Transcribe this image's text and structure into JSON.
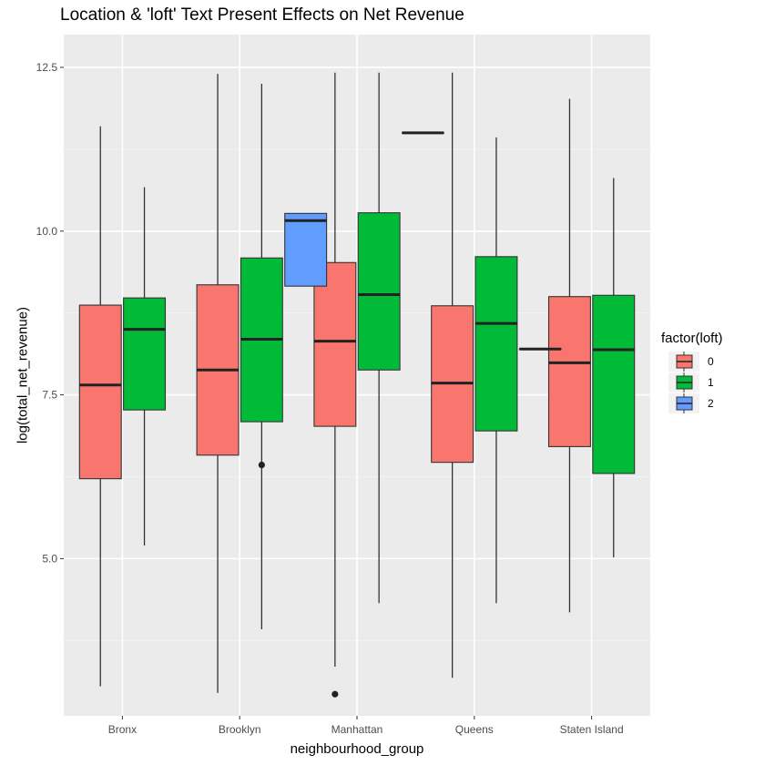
{
  "chart_data": {
    "type": "boxplot",
    "title": "Location & 'loft' Text Present Effects on Net Revenue",
    "xlabel": "neighbourhood_group",
    "ylabel": "log(total_net_revenue)",
    "categories": [
      "Bronx",
      "Brooklyn",
      "Manhattan",
      "Queens",
      "Staten Island"
    ],
    "ylim": [
      2.6,
      13.0
    ],
    "yticks": [
      5.0,
      7.5,
      10.0,
      12.5
    ],
    "ytick_labels": [
      "5.0",
      "7.5",
      "10.0",
      "12.5"
    ],
    "grid": true,
    "legend": {
      "title": "factor(loft)",
      "position": "right",
      "entries": [
        {
          "label": "0",
          "color": "#F8766D"
        },
        {
          "label": "1",
          "color": "#00BA38"
        },
        {
          "label": "2",
          "color": "#619CFF"
        }
      ]
    },
    "series": [
      {
        "name": "0",
        "color": "#F8766D",
        "boxes": [
          {
            "category": "Bronx",
            "min": 3.05,
            "q1": 6.22,
            "median": 7.65,
            "q3": 8.87,
            "max": 11.6,
            "outliers": []
          },
          {
            "category": "Brooklyn",
            "min": 2.95,
            "q1": 6.58,
            "median": 7.88,
            "q3": 9.18,
            "max": 12.4,
            "outliers": []
          },
          {
            "category": "Manhattan",
            "min": 3.35,
            "q1": 7.02,
            "median": 8.32,
            "q3": 9.52,
            "max": 12.42,
            "outliers": [
              2.93
            ]
          },
          {
            "category": "Queens",
            "min": 3.18,
            "q1": 6.47,
            "median": 7.68,
            "q3": 8.86,
            "max": 12.42,
            "outliers": []
          },
          {
            "category": "Staten Island",
            "min": 4.18,
            "q1": 6.71,
            "median": 7.99,
            "q3": 9.0,
            "max": 12.02,
            "outliers": []
          }
        ]
      },
      {
        "name": "1",
        "color": "#00BA38",
        "boxes": [
          {
            "category": "Bronx",
            "min": 5.2,
            "q1": 7.27,
            "median": 8.5,
            "q3": 8.98,
            "max": 10.67,
            "outliers": []
          },
          {
            "category": "Brooklyn",
            "min": 3.92,
            "q1": 7.09,
            "median": 8.35,
            "q3": 9.59,
            "max": 12.25,
            "outliers": [
              6.43
            ]
          },
          {
            "category": "Manhattan",
            "min": 4.32,
            "q1": 7.88,
            "median": 9.03,
            "q3": 10.28,
            "max": 12.42,
            "outliers": []
          },
          {
            "category": "Queens",
            "min": 4.32,
            "q1": 6.95,
            "median": 8.59,
            "q3": 9.61,
            "max": 11.43,
            "outliers": []
          },
          {
            "category": "Staten Island",
            "min": 5.02,
            "q1": 6.3,
            "median": 8.19,
            "q3": 9.02,
            "max": 10.81,
            "outliers": []
          }
        ]
      },
      {
        "name": "2",
        "color": "#619CFF",
        "boxes": [
          {
            "category": "Brooklyn",
            "min": 9.16,
            "q1": 9.16,
            "median": 10.16,
            "q3": 10.27,
            "max": 10.27,
            "outliers": []
          },
          {
            "category": "Manhattan",
            "min": 11.5,
            "q1": 11.5,
            "median": 11.5,
            "q3": 11.5,
            "max": 11.5,
            "outliers": []
          },
          {
            "category": "Queens",
            "min": 8.2,
            "q1": 8.2,
            "median": 8.2,
            "q3": 8.2,
            "max": 8.2,
            "outliers": []
          }
        ]
      }
    ]
  }
}
